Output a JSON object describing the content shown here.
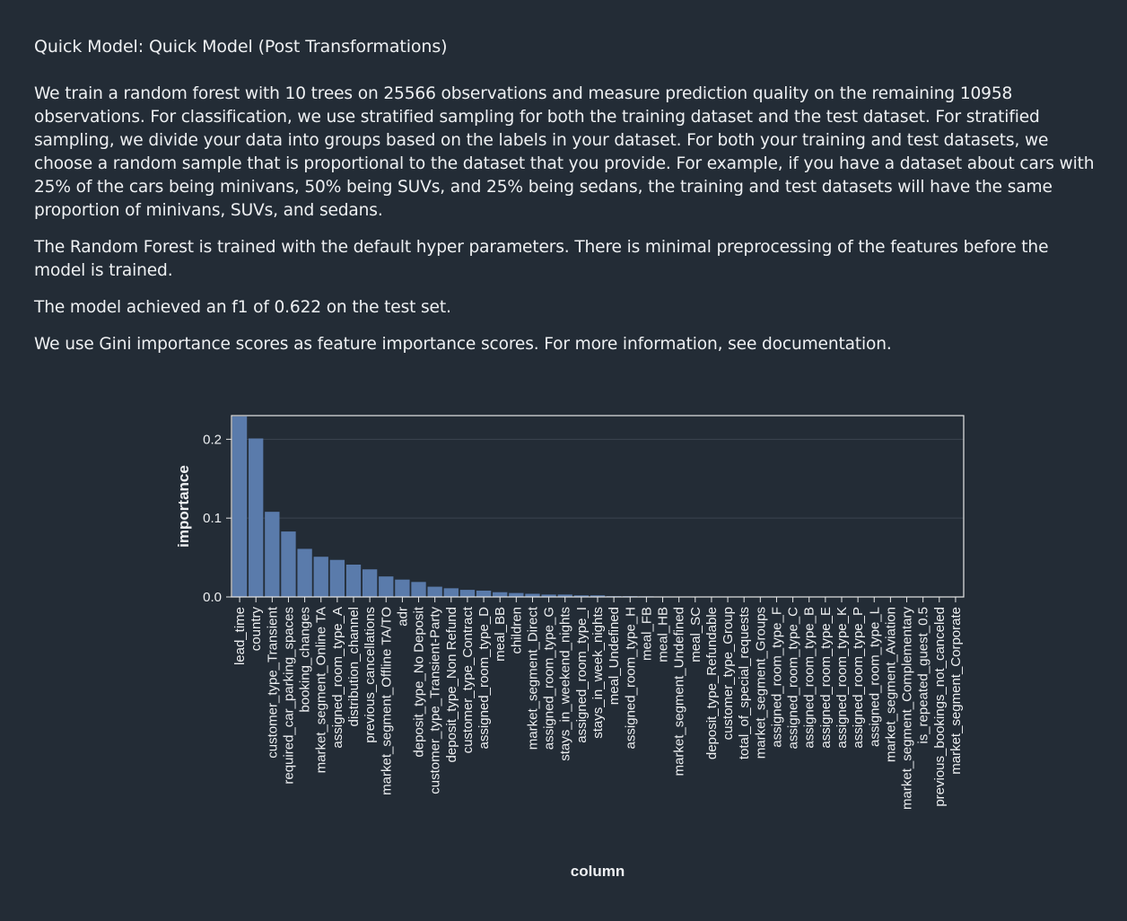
{
  "section_title": "Quick Model: Quick Model (Post Transformations)",
  "paragraphs": [
    "We train a random forest with 10 trees on 25566 observations and measure prediction quality on the remaining 10958 observations. For classification, we use stratified sampling for both the training dataset and the test dataset. For stratified sampling, we divide your data into groups based on the labels in your dataset. For both your training and test datasets, we choose a random sample that is proportional to the dataset that you provide. For example, if you have a dataset about cars with 25% of the cars being minivans, 50% being SUVs, and 25% being sedans, the training and test datasets will have the same proportion of minivans, SUVs, and sedans.",
    "The Random Forest is trained with the default hyper parameters. There is minimal preprocessing of the features before the model is trained.",
    "The model achieved an f1 of 0.622 on the test set.",
    "We use Gini importance scores as feature importance scores. For more information, see documentation."
  ],
  "colors": {
    "background": "#232c36",
    "bar": "#5a7bab",
    "text": "#eef0f2",
    "axis": "#e6e6e6"
  },
  "chart_data": {
    "type": "bar",
    "xlabel": "column",
    "ylabel": "importance",
    "ylim": [
      0,
      0.23
    ],
    "yticks": [
      "0.0",
      "0.1",
      "0.2"
    ],
    "grid": true,
    "categories": [
      "lead_time",
      "country",
      "customer_type_Transient",
      "required_car_parking_spaces",
      "booking_changes",
      "market_segment_Online TA",
      "assigned_room_type_A",
      "distribution_channel",
      "previous_cancellations",
      "market_segment_Offline TA/TO",
      "adr",
      "deposit_type_No Deposit",
      "customer_type_Transient-Party",
      "deposit_type_Non Refund",
      "customer_type_Contract",
      "assigned_room_type_D",
      "meal_BB",
      "children",
      "market_segment_Direct",
      "assigned_room_type_G",
      "stays_in_weekend_nights",
      "assigned_room_type_I",
      "stays_in_week_nights",
      "meal_Undefined",
      "assigned_room_type_H",
      "meal_FB",
      "meal_HB",
      "market_segment_Undefined",
      "meal_SC",
      "deposit_type_Refundable",
      "customer_type_Group",
      "total_of_special_requests",
      "market_segment_Groups",
      "assigned_room_type_F",
      "assigned_room_type_C",
      "assigned_room_type_B",
      "assigned_room_type_E",
      "assigned_room_type_K",
      "assigned_room_type_P",
      "assigned_room_type_L",
      "market_segment_Aviation",
      "market_segment_Complementary",
      "is_repeated_guest_0.5",
      "previous_bookings_not_canceled",
      "market_segment_Corporate"
    ],
    "values": [
      0.229,
      0.201,
      0.108,
      0.083,
      0.061,
      0.051,
      0.047,
      0.041,
      0.035,
      0.026,
      0.022,
      0.019,
      0.013,
      0.011,
      0.009,
      0.008,
      0.006,
      0.005,
      0.004,
      0.003,
      0.003,
      0.002,
      0.002,
      0.001,
      0.001,
      0.0008,
      0.0006,
      0.0005,
      0.0004,
      0.0003,
      0.0003,
      0.0002,
      0.0002,
      0.0001,
      0.0001,
      0.0001,
      0.0001,
      0.0001,
      0.0001,
      0.0001,
      0.0001,
      0.0001,
      0.0001,
      0.0001,
      0.0001
    ]
  }
}
